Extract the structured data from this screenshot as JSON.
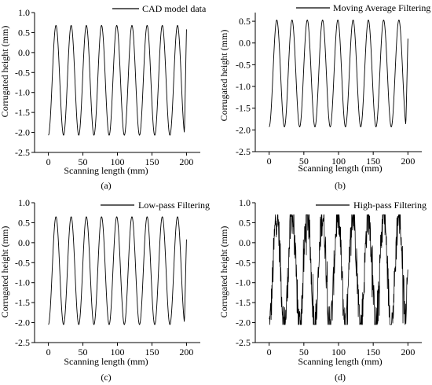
{
  "chart_data": [
    {
      "type": "line",
      "panel_label": "(a)",
      "xlabel": "Scanning length (mm)",
      "ylabel": "Corrugated height (mm)",
      "xlim": [
        -20,
        220
      ],
      "ylim": [
        -2.5,
        1.0
      ],
      "xticks": [
        0,
        50,
        100,
        150,
        200
      ],
      "xtick_labels": [
        "0",
        "50",
        "100",
        "150",
        "200"
      ],
      "yticks": [
        -2.5,
        -2.0,
        -1.5,
        -1.0,
        -0.5,
        0.0,
        0.5,
        1.0
      ],
      "ytick_labels": [
        "-2.5",
        "-2.0",
        "-1.5",
        "-1.0",
        "-0.5",
        "0.0",
        "0.5",
        "1.0"
      ],
      "legend_position": "top-right",
      "grid": false,
      "series": [
        {
          "name": "CAD model data",
          "color": "#000000",
          "wave": {
            "x_start": 0,
            "x_end": 200,
            "period": 22,
            "max": 0.68,
            "min": -2.07,
            "x_first_peak": 11,
            "end_value": 0.58
          }
        }
      ]
    },
    {
      "type": "line",
      "panel_label": "(b)",
      "xlabel": "Scanning length (mm)",
      "ylabel": "Corrugated height (mm)",
      "xlim": [
        -20,
        220
      ],
      "ylim": [
        -2.5,
        0.7
      ],
      "xticks": [
        0,
        50,
        100,
        150,
        200
      ],
      "xtick_labels": [
        "0",
        "50",
        "100",
        "150",
        "200"
      ],
      "yticks": [
        -2.5,
        -2.0,
        -1.5,
        -1.0,
        -0.5,
        0.0,
        0.5
      ],
      "ytick_labels": [
        "-2.5",
        "-2.0",
        "-1.5",
        "-1.0",
        "-0.5",
        "0.0",
        "0.5"
      ],
      "legend_position": "top-right",
      "grid": false,
      "series": [
        {
          "name": "Moving Average Filtering",
          "color": "#000000",
          "wave": {
            "x_start": 0,
            "x_end": 200,
            "period": 22,
            "max": 0.53,
            "min": -1.93,
            "x_first_peak": 11,
            "end_value": 0.1
          }
        }
      ]
    },
    {
      "type": "line",
      "panel_label": "(c)",
      "xlabel": "Scanning length (mm)",
      "ylabel": "Corrugated height (mm)",
      "xlim": [
        -20,
        220
      ],
      "ylim": [
        -2.5,
        1.0
      ],
      "xticks": [
        0,
        50,
        100,
        150,
        200
      ],
      "xtick_labels": [
        "0",
        "50",
        "100",
        "150",
        "200"
      ],
      "yticks": [
        -2.5,
        -2.0,
        -1.5,
        -1.0,
        -0.5,
        0.0,
        0.5,
        1.0
      ],
      "ytick_labels": [
        "-2.5",
        "-2.0",
        "-1.5",
        "-1.0",
        "-0.5",
        "0.0",
        "0.5",
        "1.0"
      ],
      "legend_position": "top-right",
      "grid": false,
      "series": [
        {
          "name": "Low-pass Filtering",
          "color": "#000000",
          "wave": {
            "x_start": 0,
            "x_end": 200,
            "period": 22,
            "max": 0.65,
            "min": -2.05,
            "x_first_peak": 11,
            "end_value": 0.08
          }
        }
      ]
    },
    {
      "type": "line",
      "panel_label": "(d)",
      "xlabel": "Scanning length (mm)",
      "ylabel": "Corrugated height (mm)",
      "xlim": [
        -20,
        220
      ],
      "ylim": [
        -2.5,
        1.0
      ],
      "xticks": [
        0,
        50,
        100,
        150,
        200
      ],
      "xtick_labels": [
        "0",
        "50",
        "100",
        "150",
        "200"
      ],
      "yticks": [
        -2.5,
        -2.0,
        -1.5,
        -1.0,
        -0.5,
        0.0,
        0.5,
        1.0
      ],
      "ytick_labels": [
        "-2.5",
        "-2.0",
        "-1.5",
        "-1.0",
        "-0.5",
        "0.0",
        "0.5",
        "1.0"
      ],
      "legend_position": "top-right",
      "grid": false,
      "series": [
        {
          "name": "High-pass Filtering",
          "color": "#000000",
          "wave": {
            "x_start": 0,
            "x_end": 200,
            "period": 22,
            "max": 0.7,
            "min": -2.05,
            "x_first_peak": 11,
            "end_value": -0.6,
            "noisy": true
          }
        }
      ]
    }
  ]
}
